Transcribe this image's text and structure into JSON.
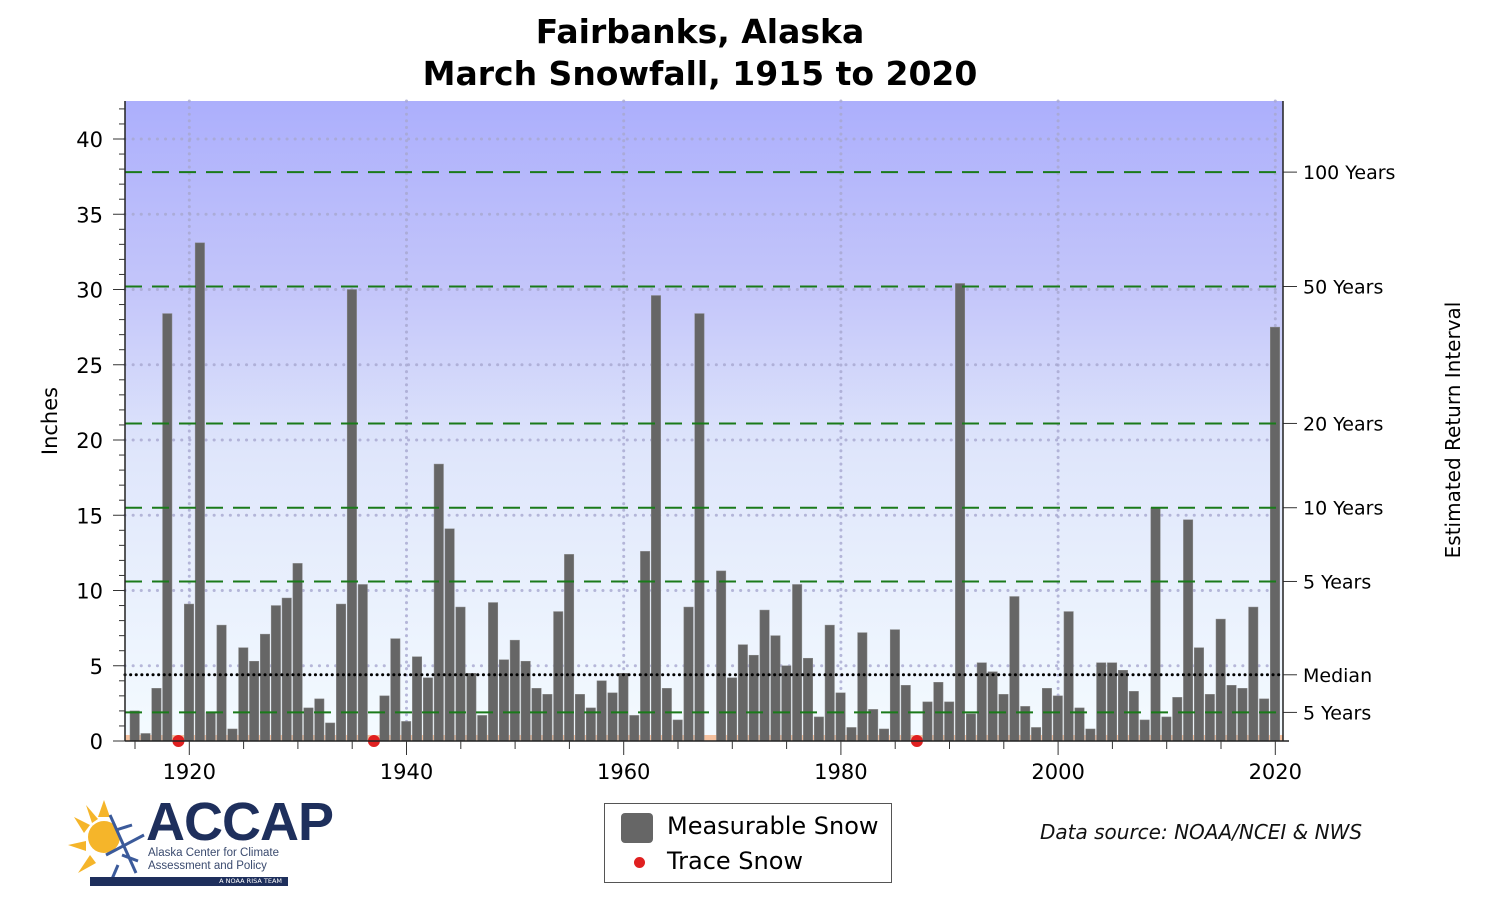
{
  "title_line1": "Fairbanks, Alaska",
  "title_line2": "March Snowfall, 1915 to 2020",
  "chart_data": {
    "type": "bar",
    "title": "Fairbanks, Alaska March Snowfall, 1915 to 2020",
    "xlabel": "",
    "ylabel": "Inches",
    "y2label": "Estimated Return Interval",
    "ylim": [
      0,
      42.5
    ],
    "xlim": [
      1914,
      2021
    ],
    "yticks": [
      0,
      5,
      10,
      15,
      20,
      25,
      30,
      35,
      40
    ],
    "xticks": [
      1920,
      1940,
      1960,
      1980,
      2000,
      2020
    ],
    "grid": true,
    "legend_position": "bottom-center",
    "years": [
      1915,
      1916,
      1917,
      1918,
      1919,
      1920,
      1921,
      1922,
      1923,
      1924,
      1925,
      1926,
      1927,
      1928,
      1929,
      1930,
      1931,
      1932,
      1933,
      1934,
      1935,
      1936,
      1937,
      1938,
      1939,
      1940,
      1941,
      1942,
      1943,
      1944,
      1945,
      1946,
      1947,
      1948,
      1949,
      1950,
      1951,
      1952,
      1953,
      1954,
      1955,
      1956,
      1957,
      1958,
      1959,
      1960,
      1961,
      1962,
      1963,
      1964,
      1965,
      1966,
      1967,
      1968,
      1969,
      1970,
      1971,
      1972,
      1973,
      1974,
      1975,
      1976,
      1977,
      1978,
      1979,
      1980,
      1981,
      1982,
      1983,
      1984,
      1985,
      1986,
      1987,
      1988,
      1989,
      1990,
      1991,
      1992,
      1993,
      1994,
      1995,
      1996,
      1997,
      1998,
      1999,
      2000,
      2001,
      2002,
      2003,
      2004,
      2005,
      2006,
      2007,
      2008,
      2009,
      2010,
      2011,
      2012,
      2013,
      2014,
      2015,
      2016,
      2017,
      2018,
      2019,
      2020
    ],
    "series": [
      {
        "name": "Measurable Snow",
        "color": "#666666",
        "values": [
          2.0,
          0.5,
          3.5,
          28.4,
          null,
          9.1,
          33.1,
          1.9,
          7.7,
          0.8,
          6.2,
          5.3,
          7.1,
          9.0,
          9.5,
          11.8,
          2.2,
          2.8,
          1.2,
          9.1,
          30.0,
          10.4,
          null,
          3.0,
          6.8,
          1.3,
          5.6,
          4.2,
          18.4,
          14.1,
          8.9,
          4.5,
          1.7,
          9.2,
          5.4,
          6.7,
          5.3,
          3.5,
          3.1,
          8.6,
          12.4,
          3.1,
          2.2,
          4.0,
          3.2,
          4.5,
          1.7,
          12.6,
          29.6,
          3.5,
          1.4,
          8.9,
          28.4,
          null,
          11.3,
          4.2,
          6.4,
          5.7,
          8.7,
          7.0,
          5.0,
          10.4,
          5.5,
          1.6,
          7.7,
          3.2,
          0.9,
          7.2,
          2.1,
          0.8,
          7.4,
          3.7,
          null,
          2.6,
          3.9,
          2.6,
          30.4,
          1.8,
          5.2,
          4.6,
          3.1,
          9.6,
          2.3,
          0.9,
          3.5,
          3.0,
          8.6,
          2.2,
          0.8,
          5.2,
          5.2,
          4.7,
          3.3,
          1.4,
          15.5,
          1.6,
          2.9,
          14.7,
          6.2,
          3.1,
          8.1,
          3.7,
          3.5,
          8.9,
          2.8,
          27.5
        ]
      },
      {
        "name": "Trace Snow",
        "color": "#e02020",
        "years": [
          1919,
          1937,
          1987
        ]
      }
    ],
    "return_intervals": [
      {
        "label": "100 Years",
        "value": 37.8
      },
      {
        "label": "50 Years",
        "value": 30.2
      },
      {
        "label": "20 Years",
        "value": 21.1
      },
      {
        "label": "10 Years",
        "value": 15.5
      },
      {
        "label": "5 Years",
        "value": 10.6
      },
      {
        "label": "Median",
        "value": 4.4
      },
      {
        "label": "5 Years",
        "value": 1.9
      }
    ]
  },
  "legend": {
    "measurable": "Measurable Snow",
    "trace": "Trace Snow"
  },
  "source": "Data source: NOAA/NCEI & NWS",
  "logo": {
    "name": "ACCAP",
    "subtitle1": "Alaska Center for Climate",
    "subtitle2": "Assessment and Policy",
    "tagline": "A NOAA RISA TEAM"
  },
  "colors": {
    "bar": "#666666",
    "trace": "#e02020",
    "return_line": "#1a7a1a",
    "bg_top": "#aeb0fc",
    "bg_bottom": "#f4fbff"
  }
}
